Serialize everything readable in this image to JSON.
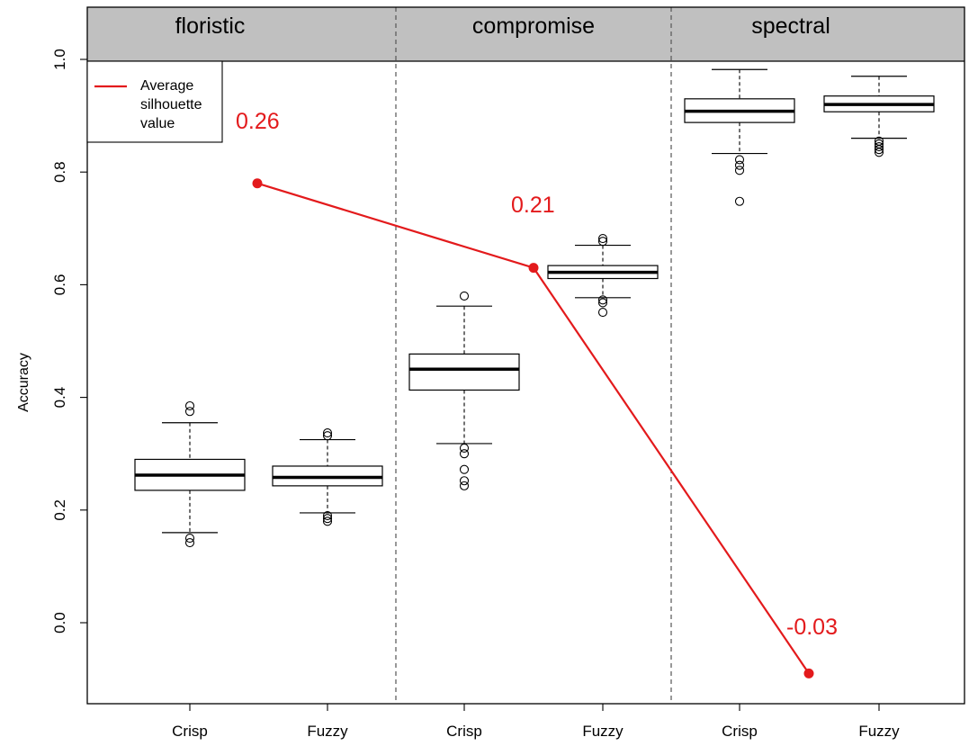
{
  "chart_data": {
    "type": "box",
    "ylabel": "Accuracy",
    "ylim": [
      -0.145,
      1.005
    ],
    "yticks": [
      0.0,
      0.2,
      0.4,
      0.6,
      0.8,
      1.0
    ],
    "ytick_labels": [
      "0.0",
      "0.2",
      "0.4",
      "0.6",
      "0.8",
      "1.0"
    ],
    "panels": [
      {
        "name": "floristic",
        "categories": [
          "Crisp",
          "Fuzzy"
        ]
      },
      {
        "name": "compromise",
        "categories": [
          "Crisp",
          "Fuzzy"
        ]
      },
      {
        "name": "spectral",
        "categories": [
          "Crisp",
          "Fuzzy"
        ]
      }
    ],
    "boxes": [
      {
        "panel": "floristic",
        "category": "Crisp",
        "whisker_low": 0.16,
        "q1": 0.235,
        "median": 0.262,
        "q3": 0.29,
        "whisker_high": 0.355,
        "outliers": [
          0.385,
          0.375,
          0.15,
          0.142
        ]
      },
      {
        "panel": "floristic",
        "category": "Fuzzy",
        "whisker_low": 0.195,
        "q1": 0.243,
        "median": 0.258,
        "q3": 0.278,
        "whisker_high": 0.325,
        "outliers": [
          0.337,
          0.332,
          0.19,
          0.185,
          0.18
        ]
      },
      {
        "panel": "compromise",
        "category": "Crisp",
        "whisker_low": 0.318,
        "q1": 0.413,
        "median": 0.45,
        "q3": 0.477,
        "whisker_high": 0.562,
        "outliers": [
          0.58,
          0.31,
          0.3,
          0.272,
          0.252,
          0.243
        ]
      },
      {
        "panel": "compromise",
        "category": "Fuzzy",
        "whisker_low": 0.577,
        "q1": 0.611,
        "median": 0.622,
        "q3": 0.634,
        "whisker_high": 0.67,
        "outliers": [
          0.682,
          0.677,
          0.573,
          0.568,
          0.551
        ]
      },
      {
        "panel": "spectral",
        "category": "Crisp",
        "whisker_low": 0.833,
        "q1": 0.888,
        "median": 0.908,
        "q3": 0.93,
        "whisker_high": 0.982,
        "outliers": [
          0.822,
          0.812,
          0.803,
          0.748
        ]
      },
      {
        "panel": "spectral",
        "category": "Fuzzy",
        "whisker_low": 0.86,
        "q1": 0.907,
        "median": 0.92,
        "q3": 0.935,
        "whisker_high": 0.97,
        "outliers": [
          0.855,
          0.85,
          0.845,
          0.84,
          0.835
        ]
      }
    ],
    "silhouette": {
      "name": "Average silhouette value",
      "color": "#e31a1c",
      "points": [
        {
          "panel": "floristic",
          "accuracy": 0.78,
          "value_label": "0.26"
        },
        {
          "panel": "compromise",
          "accuracy": 0.63,
          "value_label": "0.21"
        },
        {
          "panel": "spectral",
          "accuracy": -0.09,
          "value_label": "-0.03"
        }
      ]
    },
    "legend": {
      "position": "top-left",
      "label_lines": [
        "Average",
        "silhouette",
        "value"
      ]
    },
    "grid": false
  }
}
